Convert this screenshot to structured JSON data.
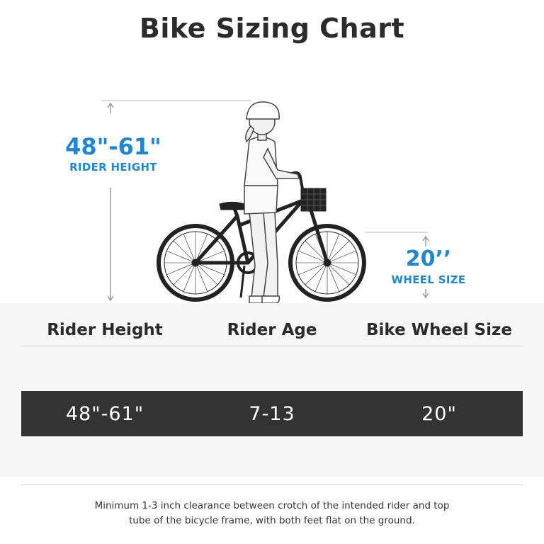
{
  "title": "Bike Sizing Chart",
  "callouts": {
    "rider_height_value": "48\"-61\"",
    "rider_height_label": "RIDER HEIGHT",
    "wheel_size_value": "20’’",
    "wheel_size_label": "WHEEL SIZE"
  },
  "table": {
    "headers": [
      "Rider Height",
      "Rider Age",
      "Bike Wheel Size"
    ],
    "rows": [
      [
        "48\"-61\"",
        "7-13",
        "20\""
      ]
    ]
  },
  "note": "Minimum 1-3 inch clearance between crotch of the intended rider and top tube of the bicycle frame, with both feet flat on the ground.",
  "colors": {
    "accent": "#1f86d1",
    "dark_row": "#333333",
    "text": "#2b2b2b"
  },
  "icons": [
    "rider-illustration",
    "bicycle-illustration",
    "height-dimension-arrow",
    "wheel-dimension-arrow"
  ]
}
